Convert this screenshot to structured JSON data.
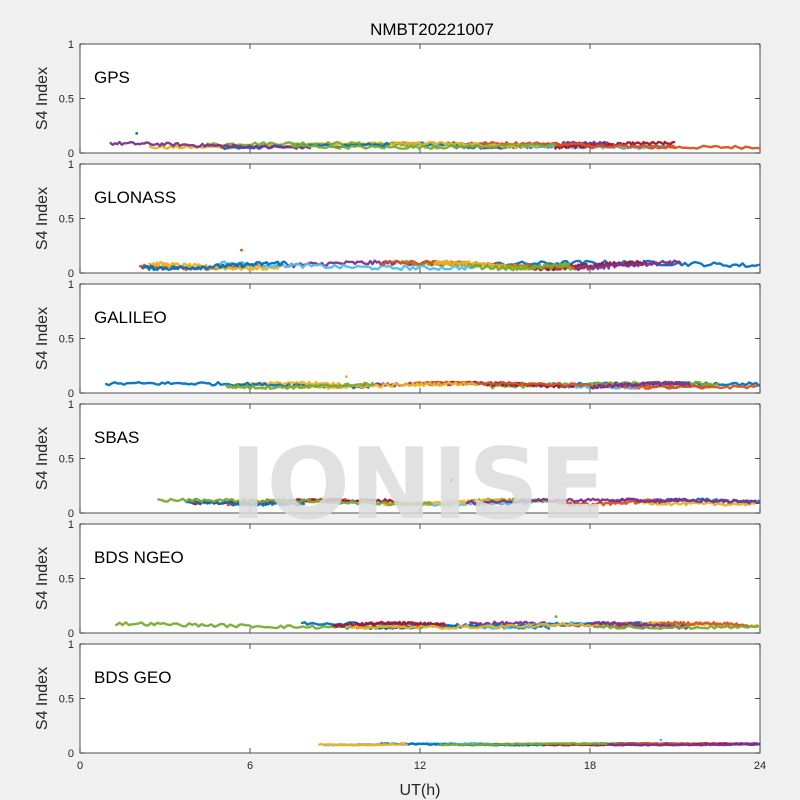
{
  "watermark": "IONISE",
  "chart_data": {
    "type": "scatter",
    "title": "NMBT20221007",
    "xlabel": "UT(h)",
    "ylabel": "S4 Index",
    "xlim": [
      0,
      24
    ],
    "ylim": [
      0,
      1
    ],
    "xticks": [
      0,
      6,
      12,
      18,
      24
    ],
    "yticks": [
      0,
      0.5,
      1
    ],
    "grid": false,
    "colors": [
      "#0072BD",
      "#D95319",
      "#EDB120",
      "#7E2F8E",
      "#77AC30",
      "#4DBEEE",
      "#A2142F"
    ],
    "panels": [
      {
        "label": "GPS",
        "baseline": 0.07,
        "spread": 0.03,
        "max_value": 0.18
      },
      {
        "label": "GLONASS",
        "baseline": 0.07,
        "spread": 0.04,
        "max_value": 0.21
      },
      {
        "label": "GALILEO",
        "baseline": 0.07,
        "spread": 0.03,
        "max_value": 0.15
      },
      {
        "label": "SBAS",
        "baseline": 0.1,
        "spread": 0.03,
        "max_value": 0.3
      },
      {
        "label": "BDS NGEO",
        "baseline": 0.07,
        "spread": 0.03,
        "max_value": 0.15
      },
      {
        "label": "BDS GEO",
        "baseline": 0.08,
        "spread": 0.01,
        "max_value": 0.12
      }
    ]
  }
}
